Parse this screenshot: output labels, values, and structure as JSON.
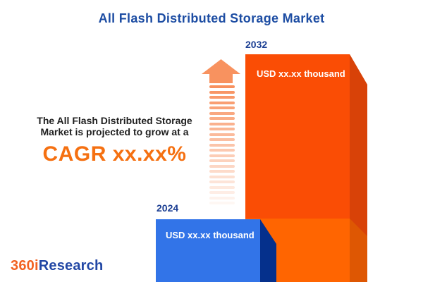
{
  "title": "All Flash Distributed Storage Market",
  "description": {
    "line1": "The All Flash Distributed Storage",
    "line2": "Market is projected to grow at a",
    "cagr": "CAGR xx.xx%"
  },
  "chart_data": {
    "type": "bar",
    "categories": [
      "2024",
      "2032"
    ],
    "values": [
      null,
      null
    ],
    "value_labels": [
      "USD xx.xx thousand",
      "USD xx.xx thousand"
    ],
    "relative_heights": [
      0.28,
      1.0
    ],
    "title": "All Flash Distributed Storage Market",
    "annotations": [
      "The All Flash Distributed Storage Market is projected to grow at a CAGR xx.xx%"
    ],
    "legend": "none",
    "grid": false
  },
  "bars": {
    "b2024": {
      "year": "2024",
      "value_label": "USD xx.xx thousand",
      "front_color": "#3274e8",
      "side_color": "#05308c"
    },
    "b2032": {
      "year": "2032",
      "value_label": "USD xx.xx thousand",
      "front_color_top": "#fa4d05",
      "front_color_bottom": "#ff6501",
      "side_color_top": "#d84208",
      "side_color_bottom": "#de5703"
    }
  },
  "arrow": {
    "icon": "growth-up-arrow",
    "color": "#f8915f",
    "stripe_count": 23
  },
  "logo": {
    "part1": "360i",
    "part2": "Research",
    "part1_color": "#f26221",
    "part2_color": "#2247a5"
  },
  "colors": {
    "title_blue": "#1d4da3",
    "year_label_blue": "#1c3f93",
    "cagr_orange": "#f57011",
    "text_dark": "#1f1f1f"
  }
}
